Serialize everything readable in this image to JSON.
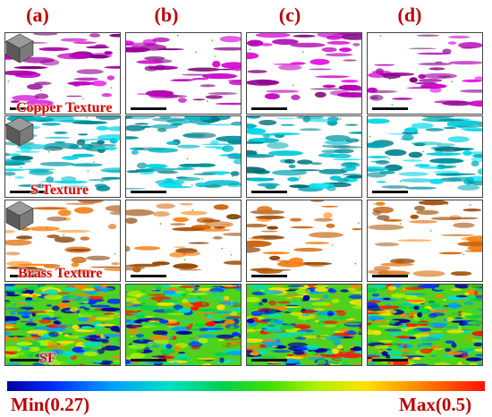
{
  "columns": [
    {
      "label": "(a)"
    },
    {
      "label": "(b)"
    },
    {
      "label": "(c)"
    },
    {
      "label": "(d)"
    }
  ],
  "rows": [
    {
      "label": "Copper Texture",
      "color": "#c000c0"
    },
    {
      "label": "S Texture",
      "color": "#00b8c8"
    },
    {
      "label": "Brass Texture",
      "color": "#e07010"
    },
    {
      "label": "SF",
      "color": "#40c040"
    }
  ],
  "colorbar": {
    "min_label": "Min(0.27)",
    "max_label": "Max(0.5)",
    "colors": [
      "#0000a0",
      "#0030ff",
      "#00a0ff",
      "#00e0c0",
      "#00d050",
      "#40e000",
      "#b0f000",
      "#ffe000",
      "#ff8000",
      "#ff1000"
    ]
  }
}
